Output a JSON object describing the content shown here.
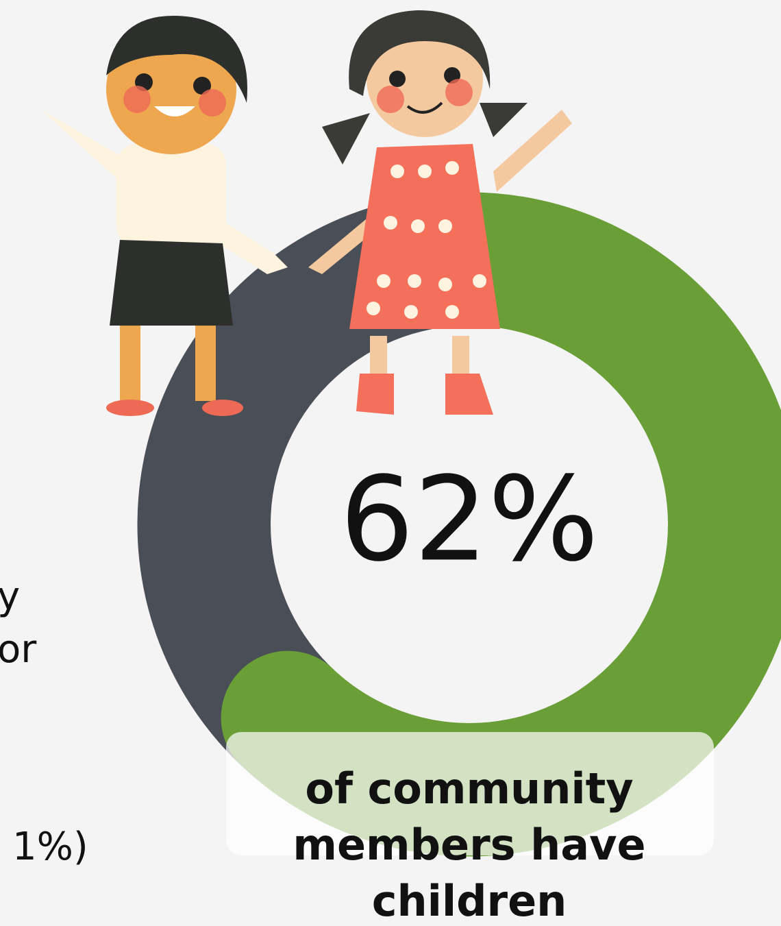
{
  "chart_data": {
    "type": "donut",
    "values": [
      62,
      38
    ],
    "value_labels": [
      "62%",
      null
    ],
    "colors": [
      "#6a9e37",
      "#4a4f57"
    ],
    "caption": "of community members have children",
    "side_fragments": [
      "y",
      "or",
      "1%)"
    ]
  }
}
